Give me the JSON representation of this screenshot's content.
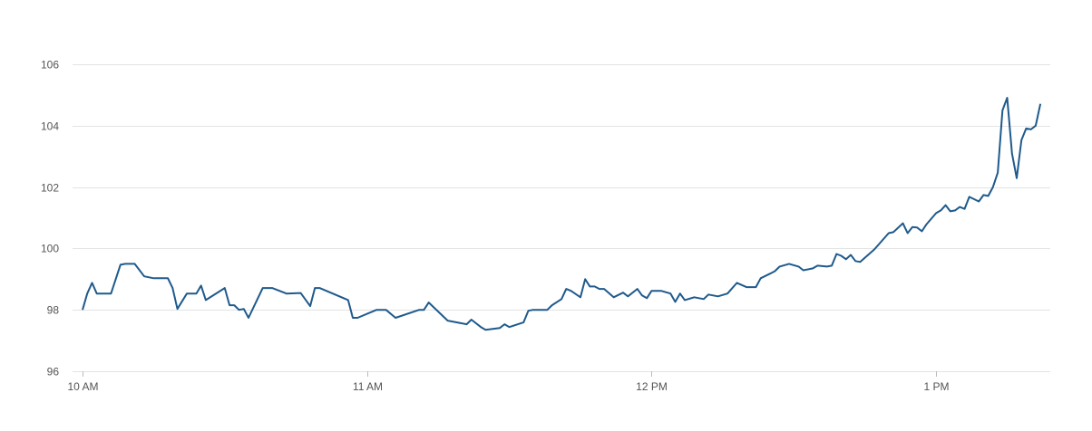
{
  "chart_data": {
    "type": "line",
    "title": "",
    "xlabel": "",
    "ylabel": "",
    "ylim": [
      96,
      106
    ],
    "yticks": [
      "96",
      "98",
      "100",
      "102",
      "104",
      "106"
    ],
    "xlim": [
      "10:00",
      "13:25"
    ],
    "xticks": [
      {
        "time": "10:00",
        "label": "10 AM"
      },
      {
        "time": "11:00",
        "label": "11 AM"
      },
      {
        "time": "12:00",
        "label": "12 PM"
      },
      {
        "time": "13:00",
        "label": "1 PM"
      }
    ],
    "grid": "horizontal",
    "line_color": "#1f5a8c",
    "series": [
      {
        "x": [
          "10:00",
          "10:01",
          "10:02",
          "10:03",
          "10:06",
          "10:08",
          "10:09",
          "10:11",
          "10:13",
          "10:15",
          "10:18",
          "10:19",
          "10:20",
          "10:22",
          "10:24",
          "10:25",
          "10:26",
          "10:30",
          "10:31",
          "10:32",
          "10:33",
          "10:34",
          "10:35",
          "10:38",
          "10:40",
          "10:43",
          "10:46",
          "10:48",
          "10:49",
          "10:50",
          "10:56",
          "10:57",
          "10:58",
          "11:02",
          "11:04",
          "11:06",
          "11:11",
          "11:12",
          "11:13",
          "11:17",
          "11:19",
          "11:21",
          "11:22",
          "11:24",
          "11:25",
          "11:28",
          "11:29",
          "11:30",
          "11:33",
          "11:34",
          "11:35",
          "11:38",
          "11:39",
          "11:41",
          "11:42",
          "11:43",
          "11:45",
          "11:46",
          "11:47",
          "11:48",
          "11:49",
          "11:50",
          "11:52",
          "11:54",
          "11:55",
          "11:57",
          "11:58",
          "11:59",
          "12:00",
          "12:02",
          "12:04",
          "12:05",
          "12:06",
          "12:07",
          "12:09",
          "12:11",
          "12:12",
          "12:14",
          "12:16",
          "12:18",
          "12:20",
          "12:22",
          "12:23",
          "12:25",
          "12:26",
          "12:27",
          "12:29",
          "12:31",
          "12:32",
          "12:34",
          "12:35",
          "12:37",
          "12:38",
          "12:39",
          "12:40",
          "12:41",
          "12:42",
          "12:43",
          "12:44",
          "12:47",
          "12:50",
          "12:51",
          "12:53",
          "12:54",
          "12:55",
          "12:56",
          "12:57",
          "12:58",
          "13:00",
          "13:01",
          "13:02",
          "13:03",
          "13:04",
          "13:05",
          "13:06",
          "13:07",
          "13:09",
          "13:10",
          "13:11",
          "13:12",
          "13:13",
          "13:14",
          "13:15",
          "13:16",
          "13:17",
          "13:18",
          "13:19",
          "13:20",
          "13:21",
          "13:22"
        ],
        "y": [
          98.0,
          98.53,
          98.88,
          98.53,
          98.53,
          99.47,
          99.5,
          99.5,
          99.09,
          99.03,
          99.03,
          98.71,
          98.03,
          98.53,
          98.53,
          98.79,
          98.32,
          98.71,
          98.15,
          98.15,
          98.0,
          98.03,
          97.74,
          98.71,
          98.71,
          98.53,
          98.55,
          98.12,
          98.71,
          98.71,
          98.32,
          97.74,
          97.74,
          98.0,
          98.0,
          97.74,
          98.0,
          98.0,
          98.24,
          97.65,
          97.59,
          97.53,
          97.68,
          97.44,
          97.35,
          97.41,
          97.53,
          97.44,
          97.59,
          97.97,
          98.0,
          98.0,
          98.15,
          98.35,
          98.68,
          98.62,
          98.41,
          99.0,
          98.76,
          98.76,
          98.68,
          98.68,
          98.41,
          98.56,
          98.44,
          98.68,
          98.47,
          98.38,
          98.62,
          98.62,
          98.53,
          98.26,
          98.53,
          98.32,
          98.41,
          98.35,
          98.5,
          98.44,
          98.53,
          98.88,
          98.74,
          98.74,
          99.03,
          99.18,
          99.26,
          99.41,
          99.5,
          99.41,
          99.29,
          99.35,
          99.44,
          99.41,
          99.44,
          99.82,
          99.76,
          99.65,
          99.79,
          99.59,
          99.56,
          99.97,
          100.5,
          100.53,
          100.82,
          100.5,
          100.7,
          100.68,
          100.56,
          100.79,
          101.15,
          101.24,
          101.41,
          101.21,
          101.24,
          101.35,
          101.29,
          101.68,
          101.53,
          101.74,
          101.71,
          102.0,
          102.47,
          104.5,
          104.91,
          103.09,
          102.29,
          103.53,
          103.91,
          103.88,
          104.0,
          104.71
        ]
      }
    ]
  }
}
